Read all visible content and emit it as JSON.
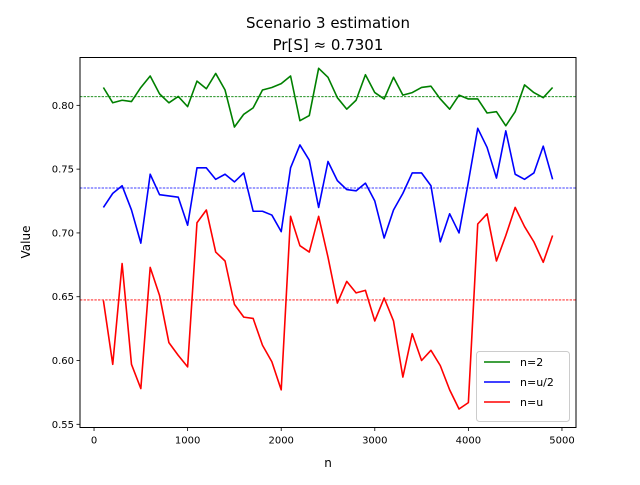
{
  "chart_data": {
    "type": "line",
    "title": "Scenario 3 estimation",
    "subtitle": "Pr[S] ≈ 0.7301",
    "xlabel": "n",
    "ylabel": "Value",
    "xlim": [
      -150,
      5150
    ],
    "ylim": [
      0.5475,
      0.8375
    ],
    "grid": false,
    "legend_position": "lower-right",
    "xticks": [
      0,
      1000,
      2000,
      3000,
      4000,
      5000
    ],
    "xtick_labels": [
      "0",
      "1000",
      "2000",
      "3000",
      "4000",
      "5000"
    ],
    "yticks": [
      0.55,
      0.6,
      0.65,
      0.7,
      0.75,
      0.8
    ],
    "ytick_labels": [
      "0.55",
      "0.60",
      "0.65",
      "0.70",
      "0.75",
      "0.80"
    ],
    "x": [
      100,
      200,
      300,
      400,
      500,
      600,
      700,
      800,
      900,
      1000,
      1100,
      1200,
      1300,
      1400,
      1500,
      1600,
      1700,
      1800,
      1900,
      2000,
      2100,
      2200,
      2300,
      2400,
      2500,
      2600,
      2700,
      2800,
      2900,
      3000,
      3100,
      3200,
      3300,
      3400,
      3500,
      3600,
      3700,
      3800,
      3900,
      4000,
      4100,
      4200,
      4300,
      4400,
      4500,
      4600,
      4700,
      4800,
      4900
    ],
    "series": [
      {
        "name": "n=2",
        "color": "#008000",
        "reference_line": 0.8068,
        "values": [
          0.814,
          0.802,
          0.804,
          0.803,
          0.814,
          0.823,
          0.809,
          0.802,
          0.807,
          0.799,
          0.819,
          0.813,
          0.825,
          0.812,
          0.783,
          0.793,
          0.798,
          0.812,
          0.814,
          0.817,
          0.823,
          0.788,
          0.792,
          0.829,
          0.822,
          0.806,
          0.797,
          0.804,
          0.824,
          0.81,
          0.805,
          0.822,
          0.808,
          0.81,
          0.814,
          0.815,
          0.805,
          0.797,
          0.808,
          0.805,
          0.805,
          0.794,
          0.795,
          0.784,
          0.795,
          0.816,
          0.81,
          0.806,
          0.814
        ]
      },
      {
        "name": "n=u/2",
        "color": "#0000ff",
        "reference_line": 0.7352,
        "values": [
          0.72,
          0.731,
          0.737,
          0.718,
          0.692,
          0.746,
          0.73,
          0.729,
          0.728,
          0.706,
          0.751,
          0.751,
          0.742,
          0.746,
          0.74,
          0.747,
          0.717,
          0.717,
          0.714,
          0.701,
          0.751,
          0.769,
          0.757,
          0.72,
          0.756,
          0.741,
          0.734,
          0.733,
          0.739,
          0.725,
          0.696,
          0.718,
          0.731,
          0.747,
          0.747,
          0.737,
          0.693,
          0.715,
          0.7,
          0.74,
          0.782,
          0.767,
          0.743,
          0.78,
          0.746,
          0.742,
          0.747,
          0.768,
          0.742
        ]
      },
      {
        "name": "n=u",
        "color": "#ff0000",
        "reference_line": 0.6475,
        "values": [
          0.647,
          0.597,
          0.676,
          0.597,
          0.578,
          0.673,
          0.651,
          0.614,
          0.604,
          0.595,
          0.708,
          0.718,
          0.685,
          0.678,
          0.644,
          0.634,
          0.633,
          0.612,
          0.599,
          0.577,
          0.713,
          0.69,
          0.685,
          0.713,
          0.681,
          0.645,
          0.662,
          0.653,
          0.655,
          0.631,
          0.649,
          0.631,
          0.587,
          0.621,
          0.6,
          0.608,
          0.596,
          0.577,
          0.562,
          0.567,
          0.707,
          0.715,
          0.678,
          0.698,
          0.72,
          0.705,
          0.693,
          0.677,
          0.698
        ]
      }
    ]
  }
}
